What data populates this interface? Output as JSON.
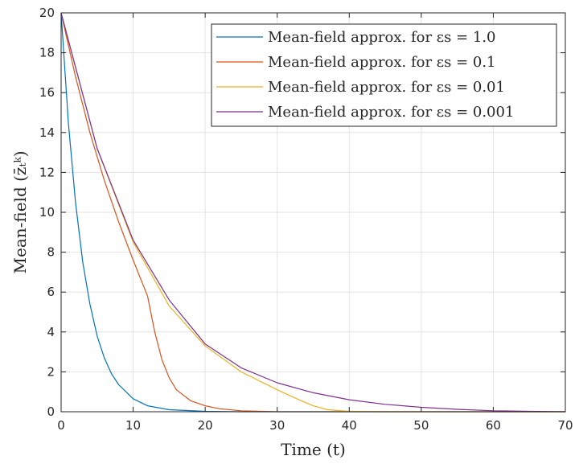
{
  "chart_data": {
    "type": "line",
    "xlabel": "Time (t)",
    "ylabel": "Mean-field (z̄ₜᵏ)",
    "xlim": [
      0,
      70
    ],
    "ylim": [
      0,
      20
    ],
    "xticks": [
      "0",
      "10",
      "20",
      "30",
      "40",
      "50",
      "60",
      "70"
    ],
    "yticks": [
      "0",
      "2",
      "4",
      "6",
      "8",
      "10",
      "12",
      "14",
      "16",
      "18",
      "20"
    ],
    "grid": true,
    "legend_position": "top-right",
    "series": [
      {
        "name": "Mean-field approx. for εs = 1.0",
        "color": "#0072BD",
        "x": [
          0,
          1,
          2,
          3,
          4,
          5,
          6,
          7,
          8,
          10,
          12,
          15,
          20,
          25,
          30,
          70
        ],
        "y": [
          20,
          14.5,
          10.5,
          7.5,
          5.4,
          3.8,
          2.7,
          1.9,
          1.35,
          0.65,
          0.3,
          0.1,
          0.02,
          0,
          0,
          0
        ]
      },
      {
        "name": "Mean-field approx. for εs = 0.1",
        "color": "#D95319",
        "x": [
          0,
          2,
          4,
          6,
          8,
          10,
          11,
          12,
          13,
          14,
          15,
          16,
          18,
          20,
          22,
          25,
          30,
          70
        ],
        "y": [
          20,
          16.8,
          14.0,
          11.6,
          9.5,
          7.6,
          6.7,
          5.8,
          4.0,
          2.6,
          1.7,
          1.1,
          0.55,
          0.3,
          0.15,
          0.05,
          0,
          0
        ]
      },
      {
        "name": "Mean-field approx. for εs = 0.01",
        "color": "#EDB120",
        "x": [
          0,
          5,
          10,
          15,
          20,
          25,
          30,
          33,
          35,
          37,
          40,
          45,
          50,
          70
        ],
        "y": [
          20,
          13.2,
          8.5,
          5.3,
          3.3,
          2.0,
          1.1,
          0.6,
          0.3,
          0.1,
          0.02,
          0,
          0,
          0
        ]
      },
      {
        "name": "Mean-field approx. for εs = 0.001",
        "color": "#7E2F8E",
        "x": [
          0,
          5,
          10,
          15,
          20,
          25,
          30,
          35,
          40,
          45,
          50,
          55,
          60,
          65,
          70
        ],
        "y": [
          20,
          13.2,
          8.6,
          5.6,
          3.4,
          2.2,
          1.45,
          0.95,
          0.6,
          0.37,
          0.22,
          0.12,
          0.05,
          0.02,
          0
        ]
      }
    ]
  }
}
